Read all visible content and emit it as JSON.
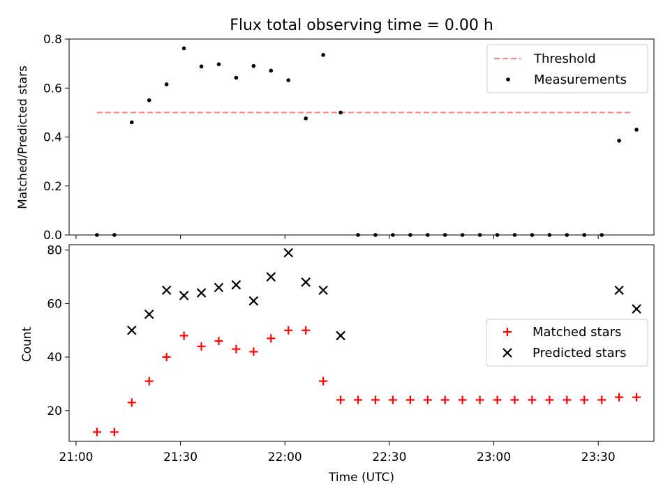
{
  "figure": {
    "title": "Flux total observing time = 0.00 h",
    "xlabel": "Time (UTC)"
  },
  "chart_data": [
    {
      "type": "scatter",
      "ylabel": "Matched/Predicted stars",
      "ylim": [
        0,
        0.8
      ],
      "yticks": [
        0.0,
        0.2,
        0.4,
        0.6,
        0.8
      ],
      "yticklabels": [
        "0.0",
        "0.2",
        "0.4",
        "0.6",
        "0.8"
      ],
      "xlim": [
        "20:58",
        "23:46"
      ],
      "xticks": [
        "21:00",
        "21:30",
        "22:00",
        "22:30",
        "23:00",
        "23:30"
      ],
      "xticklabels": [],
      "legend_position": "top-right",
      "series": [
        {
          "name": "Threshold",
          "kind": "dashed-line",
          "color": "#ff7f7f",
          "x": [
            "21:06",
            "23:40"
          ],
          "y": [
            0.5,
            0.5
          ]
        },
        {
          "name": "Measurements",
          "kind": "dot",
          "color": "#000000",
          "x": [
            "21:06",
            "21:11",
            "21:16",
            "21:21",
            "21:26",
            "21:31",
            "21:36",
            "21:41",
            "21:46",
            "21:51",
            "21:56",
            "22:01",
            "22:06",
            "22:11",
            "22:16",
            "22:21",
            "22:26",
            "22:31",
            "22:36",
            "22:41",
            "22:46",
            "22:51",
            "22:56",
            "23:01",
            "23:06",
            "23:11",
            "23:16",
            "23:21",
            "23:26",
            "23:31",
            "23:36",
            "23:41"
          ],
          "y": [
            0.0,
            0.0,
            0.46,
            0.55,
            0.615,
            0.762,
            0.688,
            0.697,
            0.642,
            0.69,
            0.671,
            0.632,
            0.476,
            0.735,
            0.5,
            0.0,
            0.0,
            0.0,
            0.0,
            0.0,
            0.0,
            0.0,
            0.0,
            0.0,
            0.0,
            0.0,
            0.0,
            0.0,
            0.0,
            0.0,
            0.385,
            0.43
          ]
        }
      ]
    },
    {
      "type": "scatter",
      "ylabel": "Count",
      "ylim": [
        8.5,
        82
      ],
      "yticks": [
        20,
        40,
        60,
        80
      ],
      "yticklabels": [
        "20",
        "40",
        "60",
        "80"
      ],
      "xlim": [
        "20:58",
        "23:46"
      ],
      "xticks": [
        "21:00",
        "21:30",
        "22:00",
        "22:30",
        "23:00",
        "23:30"
      ],
      "xticklabels": [
        "21:00",
        "21:30",
        "22:00",
        "22:30",
        "23:00",
        "23:30"
      ],
      "legend_position": "center-right",
      "series": [
        {
          "name": "Matched stars",
          "marker": "plus",
          "color": "#ff0000",
          "x": [
            "21:06",
            "21:11",
            "21:16",
            "21:21",
            "21:26",
            "21:31",
            "21:36",
            "21:41",
            "21:46",
            "21:51",
            "21:56",
            "22:01",
            "22:06",
            "22:11",
            "22:16",
            "22:21",
            "22:26",
            "22:31",
            "22:36",
            "22:41",
            "22:46",
            "22:51",
            "22:56",
            "23:01",
            "23:06",
            "23:11",
            "23:16",
            "23:21",
            "23:26",
            "23:31",
            "23:36",
            "23:41"
          ],
          "y": [
            12,
            12,
            23,
            31,
            40,
            48,
            44,
            46,
            43,
            42,
            47,
            50,
            50,
            31,
            24,
            24,
            24,
            24,
            24,
            24,
            24,
            24,
            24,
            24,
            24,
            24,
            24,
            24,
            24,
            24,
            25,
            25
          ]
        },
        {
          "name": "Predicted stars",
          "marker": "x",
          "color": "#000000",
          "x": [
            "21:16",
            "21:21",
            "21:26",
            "21:31",
            "21:36",
            "21:41",
            "21:46",
            "21:51",
            "21:56",
            "22:01",
            "22:06",
            "22:11",
            "22:16",
            "23:36",
            "23:41"
          ],
          "y": [
            50,
            56,
            65,
            63,
            64,
            66,
            67,
            61,
            70,
            79,
            68,
            65,
            48,
            65,
            58
          ]
        }
      ]
    }
  ]
}
